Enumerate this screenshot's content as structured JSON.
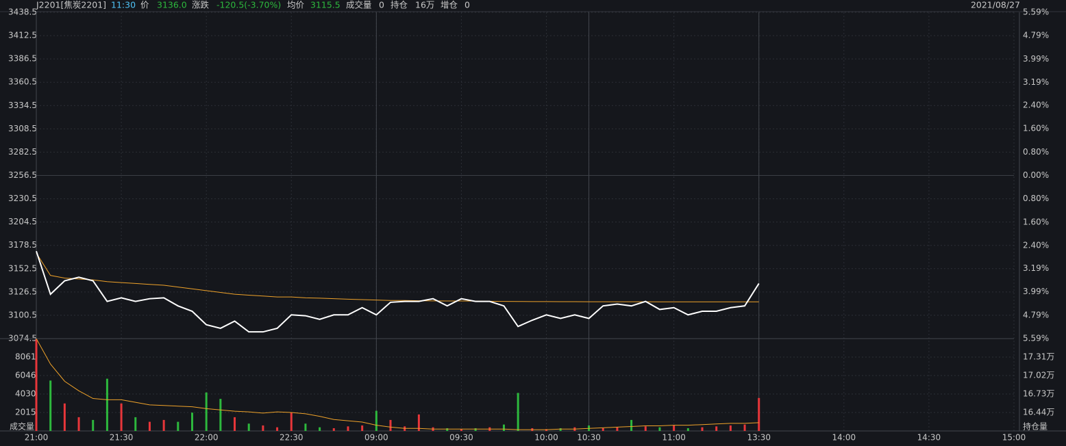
{
  "header": {
    "symbol": "J2201[焦炭2201]",
    "time": "11:30",
    "price": "3136.0",
    "change_label": "涨跌",
    "change": "-120.5(-3.70%)",
    "avg": "3115.5",
    "volume": "0",
    "oi_label": "持仓",
    "oi": "16万",
    "oi_change_label": "增仓",
    "oi_change": "0",
    "date": "2021/08/27"
  },
  "chart_data": {
    "type": "intraday",
    "x": [
      0,
      5,
      10,
      15,
      20,
      25,
      30,
      35,
      40,
      45,
      50,
      55,
      60,
      65,
      70,
      75,
      80,
      85,
      90,
      95,
      100,
      105,
      110,
      115,
      120,
      125,
      130,
      135,
      140,
      145,
      150,
      155,
      160,
      165,
      170,
      175,
      180,
      185,
      190,
      195,
      200,
      205,
      210,
      215,
      220,
      225,
      230,
      235,
      240,
      245,
      250,
      255
    ],
    "xlim": [
      0,
      345
    ],
    "xticks": [
      {
        "value": 0,
        "label": "21:00"
      },
      {
        "value": 30,
        "label": "21:30"
      },
      {
        "value": 60,
        "label": "22:00"
      },
      {
        "value": 90,
        "label": "22:30"
      },
      {
        "value": 120,
        "label": "09:00"
      },
      {
        "value": 150,
        "label": "09:30"
      },
      {
        "value": 180,
        "label": "10:00"
      },
      {
        "value": 195,
        "label": "10:30"
      },
      {
        "value": 225,
        "label": "11:00"
      },
      {
        "value": 255,
        "label": "13:30"
      },
      {
        "value": 285,
        "label": "14:00"
      },
      {
        "value": 315,
        "label": "14:30"
      },
      {
        "value": 345,
        "label": "15:00"
      }
    ],
    "session_breaks": [
      120,
      195,
      255
    ],
    "ylim": [
      3074.5,
      3438.5
    ],
    "yticks": [
      3438.5,
      3412.5,
      3386.5,
      3360.5,
      3334.5,
      3308.5,
      3282.5,
      3256.5,
      3230.5,
      3204.5,
      3178.5,
      3152.5,
      3126.5,
      3100.5,
      3074.5
    ],
    "base_price": 3256.5,
    "y2lim": [
      -5.59,
      5.59
    ],
    "y2ticks": [
      {
        "value": 5.59,
        "label": "5.59%"
      },
      {
        "value": 4.79,
        "label": "4.79%"
      },
      {
        "value": 3.99,
        "label": "3.99%"
      },
      {
        "value": 3.19,
        "label": "3.19%"
      },
      {
        "value": 2.4,
        "label": "2.40%"
      },
      {
        "value": 1.6,
        "label": "1.60%"
      },
      {
        "value": 0.8,
        "label": "0.80%"
      },
      {
        "value": 0,
        "label": "0.00%"
      },
      {
        "value": -0.8,
        "label": "0.80%"
      },
      {
        "value": -1.6,
        "label": "1.60%"
      },
      {
        "value": -2.4,
        "label": "2.40%"
      },
      {
        "value": -3.19,
        "label": "3.19%"
      },
      {
        "value": -3.99,
        "label": "3.99%"
      },
      {
        "value": -4.79,
        "label": "4.79%"
      },
      {
        "value": -5.59,
        "label": "5.59%"
      }
    ],
    "grid": true,
    "up_color": "#e8363a",
    "down_color": "#2db83d",
    "flat_color": "#b0b0b0",
    "series": [
      {
        "name": "价",
        "color": "#ffffff",
        "values": [
          3172,
          3124,
          3139,
          3143,
          3139,
          3116,
          3120,
          3116,
          3119,
          3120,
          3111,
          3105,
          3090,
          3086,
          3094,
          3082,
          3082,
          3086,
          3101,
          3100,
          3096,
          3101,
          3101,
          3109,
          3101,
          3115,
          3116,
          3116,
          3119,
          3111,
          3119,
          3116,
          3116,
          3111,
          3088,
          3095,
          3101,
          3097,
          3101,
          3097,
          3111,
          3113,
          3111,
          3116,
          3107,
          3109,
          3101,
          3105,
          3105,
          3109,
          3111,
          3136
        ]
      },
      {
        "name": "均价",
        "color": "#f0a32a",
        "values": [
          3170,
          3145,
          3142,
          3141,
          3140,
          3138,
          3137,
          3136,
          3135,
          3134,
          3132,
          3130,
          3128,
          3126,
          3124,
          3123,
          3122,
          3121,
          3121,
          3120,
          3119.6,
          3119,
          3118.5,
          3118,
          3117.5,
          3117,
          3117,
          3116.8,
          3116.6,
          3116.5,
          3116.5,
          3116.4,
          3116.2,
          3116,
          3115.9,
          3115.8,
          3115.8,
          3115.7,
          3115.7,
          3115.6,
          3115.6,
          3115.6,
          3115.6,
          3115.6,
          3115.5,
          3115.5,
          3115.5,
          3115.5,
          3115.5,
          3115.5,
          3115.5,
          3115.5
        ]
      }
    ],
    "volume": {
      "name": "成交量",
      "ylim": [
        0,
        10076
      ],
      "yticks": [
        2015,
        4030,
        6046,
        8061
      ],
      "values": [
        10000,
        5500,
        3000,
        1500,
        1200,
        5700,
        3000,
        1500,
        1000,
        1200,
        1000,
        2000,
        4200,
        3500,
        1500,
        800,
        600,
        400,
        2000,
        800,
        400,
        300,
        500,
        600,
        2200,
        1200,
        500,
        1800,
        400,
        300,
        200,
        300,
        400,
        700,
        4150,
        300,
        200,
        300,
        400,
        600,
        300,
        400,
        1200,
        500,
        400,
        600,
        300,
        400,
        500,
        600,
        700,
        3600
      ]
    },
    "open_interest": {
      "name": "持仓量",
      "color": "#f0a32a",
      "y2lim": [
        16.15,
        17.6
      ],
      "y2ticks": [
        {
          "value": 16.44,
          "label": "16.44万"
        },
        {
          "value": 16.73,
          "label": "16.73万"
        },
        {
          "value": 17.02,
          "label": "17.02万"
        },
        {
          "value": 17.31,
          "label": "17.31万"
        }
      ],
      "values": [
        17.6,
        17.2,
        16.93,
        16.78,
        16.66,
        16.64,
        16.64,
        16.6,
        16.56,
        16.55,
        16.54,
        16.53,
        16.5,
        16.48,
        16.46,
        16.45,
        16.43,
        16.45,
        16.44,
        16.42,
        16.38,
        16.33,
        16.31,
        16.29,
        16.24,
        16.21,
        16.19,
        16.19,
        16.18,
        16.18,
        16.18,
        16.18,
        16.18,
        16.18,
        16.17,
        16.17,
        16.17,
        16.18,
        16.18,
        16.19,
        16.2,
        16.21,
        16.22,
        16.23,
        16.23,
        16.24,
        16.24,
        16.25,
        16.26,
        16.27,
        16.27,
        16.28
      ]
    }
  }
}
